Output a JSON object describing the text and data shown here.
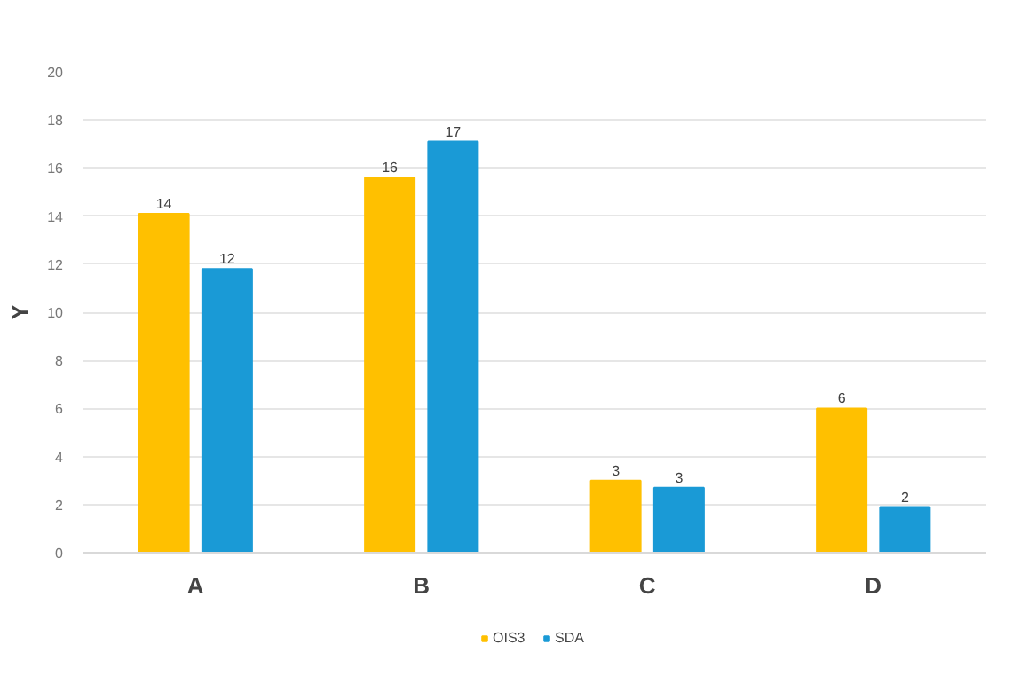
{
  "chart_data": {
    "type": "bar",
    "ylabel": "Y",
    "categories": [
      "A",
      "B",
      "C",
      "D"
    ],
    "series": [
      {
        "name": "OIS3",
        "color": "#ffc000",
        "values": [
          14.1,
          15.6,
          3.0,
          6.0
        ],
        "value_labels": [
          "14",
          "16",
          "3",
          "6"
        ]
      },
      {
        "name": "SDA",
        "color": "#1a9ad6",
        "values": [
          11.8,
          17.1,
          2.7,
          1.9
        ],
        "value_labels": [
          "12",
          "17",
          "3",
          "2"
        ]
      }
    ],
    "ylim": [
      0,
      20
    ],
    "yticks": [
      0,
      2,
      4,
      6,
      8,
      10,
      12,
      14,
      16,
      18,
      20
    ],
    "grid": "y",
    "legend": "bottom"
  }
}
